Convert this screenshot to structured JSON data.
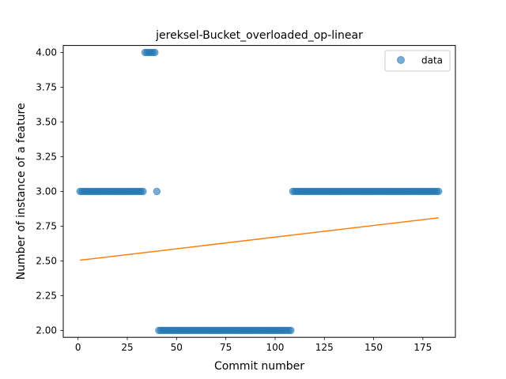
{
  "chart_data": {
    "type": "scatter",
    "title": "jereksel-Bucket_overloaded_op-linear",
    "xlabel": "Commit number",
    "ylabel": "Number of instance of a feature",
    "xlim": [
      -7.5,
      191.5
    ],
    "ylim": [
      1.95,
      4.05
    ],
    "x_ticks": [
      0,
      25,
      50,
      75,
      100,
      125,
      150,
      175
    ],
    "y_ticks": [
      2.0,
      2.25,
      2.5,
      2.75,
      3.0,
      3.25,
      3.5,
      3.75,
      4.0
    ],
    "y_tick_labels": [
      "2.00",
      "2.25",
      "2.50",
      "2.75",
      "3.00",
      "3.25",
      "3.50",
      "3.75",
      "4.00"
    ],
    "legend": {
      "position": "top-right",
      "entries": [
        "data"
      ]
    },
    "grid": false,
    "colors": {
      "data": "#1f77b4",
      "fit": "#ff7f0e"
    },
    "series": [
      {
        "name": "data",
        "kind": "scatter",
        "segments": [
          {
            "x_start": 1,
            "x_end": 33,
            "y": 3
          },
          {
            "x_start": 34,
            "x_end": 39,
            "y": 4
          },
          {
            "x_start": 40,
            "x_end": 40,
            "y": 3
          },
          {
            "x_start": 41,
            "x_end": 108,
            "y": 2
          },
          {
            "x_start": 109,
            "x_end": 183,
            "y": 3
          }
        ]
      },
      {
        "kind": "line",
        "x": [
          1,
          183
        ],
        "y": [
          2.505,
          2.81
        ]
      }
    ]
  }
}
